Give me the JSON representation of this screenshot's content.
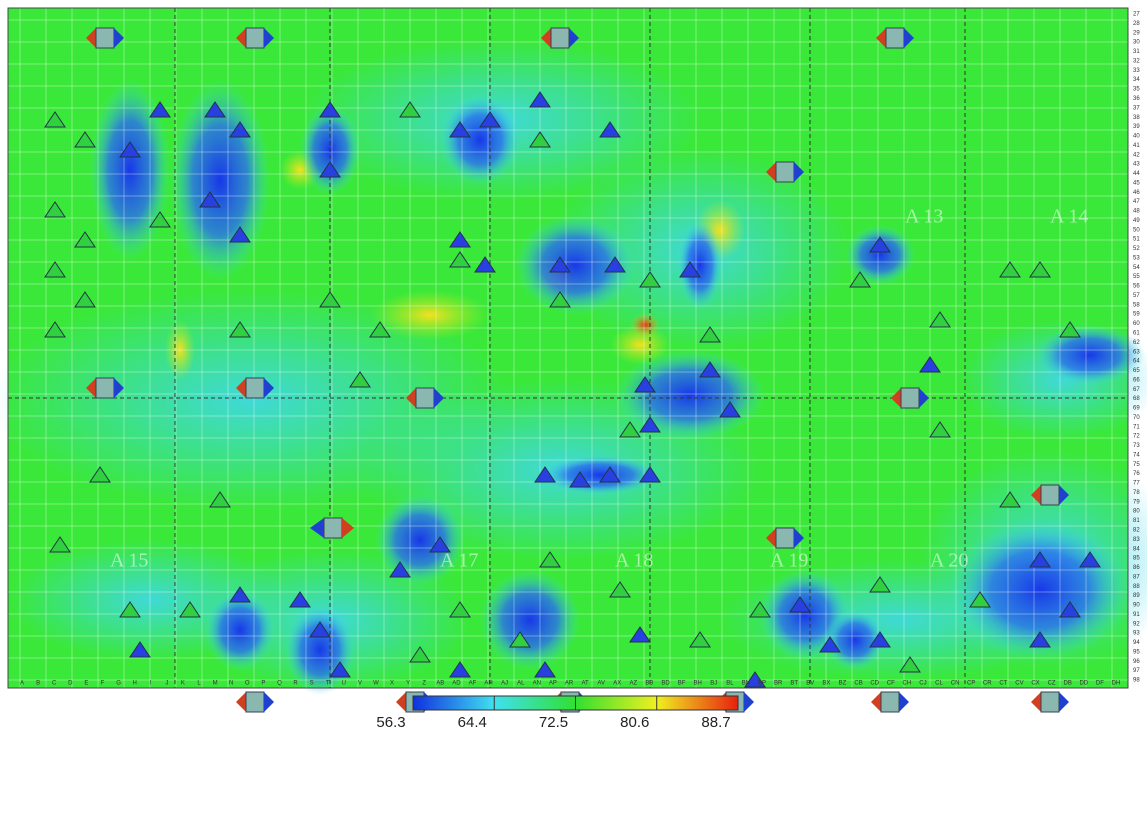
{
  "zones": [
    "A 13",
    "A 14",
    "A 15",
    "A 17",
    "A 18",
    "A 19",
    "A 20"
  ],
  "row_numbers": [
    27,
    28,
    29,
    30,
    31,
    32,
    33,
    34,
    35,
    36,
    37,
    38,
    39,
    40,
    41,
    42,
    43,
    44,
    45,
    46,
    47,
    48,
    49,
    50,
    51,
    52,
    53,
    54,
    55,
    56,
    57,
    58,
    59,
    60,
    61,
    62,
    63,
    64,
    65,
    66,
    67,
    68,
    69,
    70,
    71,
    72,
    73,
    74,
    75,
    76,
    77,
    78,
    79,
    80,
    81,
    82,
    83,
    84,
    85,
    86,
    87,
    88,
    89,
    90,
    91,
    92,
    93,
    94,
    95,
    96,
    97,
    98
  ],
  "column_labels": [
    "A",
    "B",
    "C",
    "D",
    "E",
    "F",
    "G",
    "H",
    "I",
    "J",
    "K",
    "L",
    "M",
    "N",
    "O",
    "P",
    "Q",
    "R",
    "S",
    "T",
    "U",
    "V",
    "W",
    "X",
    "Y",
    "Z",
    "AB",
    "AD",
    "AF",
    "AH",
    "AJ",
    "AL",
    "AN",
    "AP",
    "AR",
    "AT",
    "AV",
    "AX",
    "AZ",
    "BB",
    "BD",
    "BF",
    "BH",
    "BJ",
    "BL",
    "BN",
    "BP",
    "BR",
    "BT",
    "BV",
    "BX",
    "BZ",
    "CB",
    "CD",
    "CF",
    "CH",
    "CJ",
    "CL",
    "CN",
    "CP",
    "CR",
    "CT",
    "CV",
    "CX",
    "CZ",
    "DB",
    "DD",
    "DF",
    "DH"
  ],
  "colorbar": {
    "ticks": [
      56.3,
      64.4,
      72.5,
      80.6,
      88.7
    ],
    "colors": [
      "#1030e0",
      "#40e0f0",
      "#30e030",
      "#f0f020",
      "#e82010"
    ]
  }
}
